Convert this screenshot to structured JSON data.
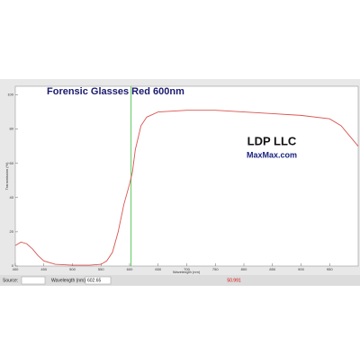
{
  "chart_data": {
    "type": "line",
    "title": "Forensic Glasses Red 600nm",
    "logo": {
      "name": "LDP LLC",
      "site": "MaxMax.com"
    },
    "x_label": "Wavelength (nm)",
    "y_label": "Transmission (%)",
    "x": [
      400,
      410,
      420,
      430,
      440,
      450,
      470,
      500,
      530,
      550,
      560,
      570,
      580,
      590,
      600,
      605,
      610,
      620,
      630,
      650,
      700,
      750,
      800,
      850,
      900,
      950,
      970,
      990,
      1000
    ],
    "series": [
      {
        "name": "Transmission",
        "color": "#d9534f",
        "values": [
          12,
          14,
          13,
          10,
          6,
          3,
          1,
          0.5,
          0.5,
          1,
          3,
          8,
          20,
          36,
          48,
          55,
          68,
          82,
          87,
          90,
          91,
          91,
          90,
          89,
          88,
          86,
          82,
          74,
          70
        ]
      }
    ],
    "xlim": [
      400,
      1000
    ],
    "ylim": [
      0,
      105
    ],
    "xticks": [
      400,
      450,
      500,
      550,
      600,
      650,
      700,
      750,
      800,
      850,
      900,
      950
    ],
    "yticks": [
      0,
      20,
      40,
      60,
      80,
      100
    ],
    "cursor": {
      "color": "#33bb33",
      "wavelength": 602.65,
      "transmission": 50.991
    },
    "toolbar": {
      "source": "Source:",
      "wavelength": "Wavelength (nm)"
    }
  }
}
